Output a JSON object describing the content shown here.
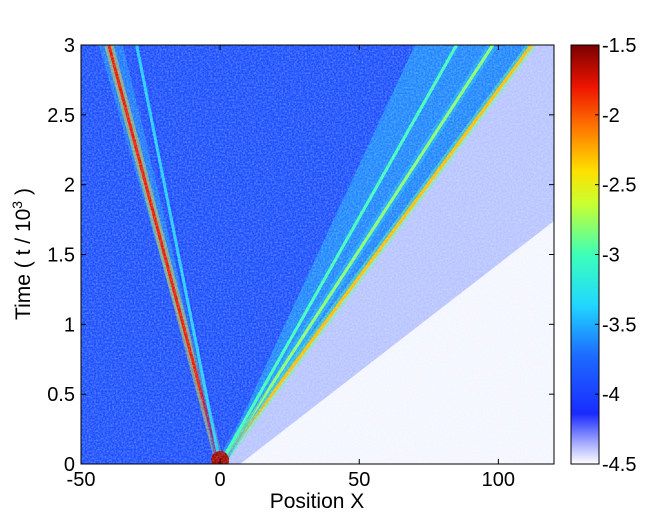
{
  "chart_data": {
    "type": "heatmap",
    "title": "",
    "xlabel": "Position X",
    "ylabel": "Time ( t / 10",
    "ylabel_superscript": "3",
    "ylabel_suffix": " )",
    "xlim": [
      -50,
      120
    ],
    "ylim": [
      0,
      3
    ],
    "x_ticks": [
      {
        "value": -50,
        "label": "-50"
      },
      {
        "value": 0,
        "label": "0"
      },
      {
        "value": 50,
        "label": "50"
      },
      {
        "value": 100,
        "label": "100"
      }
    ],
    "y_ticks": [
      {
        "value": 0,
        "label": "0"
      },
      {
        "value": 0.5,
        "label": "0.5"
      },
      {
        "value": 1,
        "label": "1"
      },
      {
        "value": 1.5,
        "label": "1.5"
      },
      {
        "value": 2,
        "label": "2"
      },
      {
        "value": 2.5,
        "label": "2.5"
      },
      {
        "value": 3,
        "label": "3"
      }
    ],
    "colorbar": {
      "range": [
        -4.5,
        -1.5
      ],
      "colormap": "jet",
      "ticks": [
        {
          "value": -1.5,
          "label": "-1.5"
        },
        {
          "value": -2,
          "label": "-2"
        },
        {
          "value": -2.5,
          "label": "-2.5"
        },
        {
          "value": -3,
          "label": "-3"
        },
        {
          "value": -3.5,
          "label": "-3.5"
        },
        {
          "value": -4,
          "label": "-4"
        },
        {
          "value": -4.5,
          "label": "-4.5"
        }
      ]
    },
    "features": [
      {
        "kind": "ray",
        "from": [
          0,
          0
        ],
        "to": [
          -40,
          3.0
        ],
        "level": -1.8
      },
      {
        "kind": "ray",
        "from": [
          0,
          0
        ],
        "to": [
          112,
          3.0
        ],
        "level": -2.3
      },
      {
        "kind": "ray",
        "from": [
          0,
          0
        ],
        "to": [
          98,
          3.0
        ],
        "level": -2.8
      },
      {
        "kind": "ray",
        "from": [
          0,
          0
        ],
        "to": [
          85,
          3.0
        ],
        "level": -3.0
      },
      {
        "kind": "ray",
        "from": [
          0,
          0
        ],
        "to": [
          -30,
          3.0
        ],
        "level": -3.4
      }
    ],
    "background_level": -3.9,
    "empty_region_level": -4.5,
    "grid": false
  }
}
